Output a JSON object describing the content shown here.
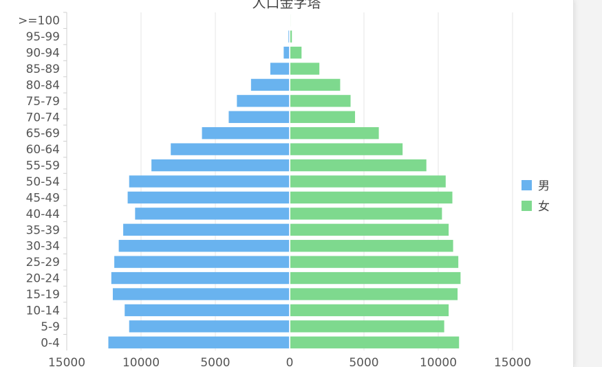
{
  "chart_data": {
    "type": "bar",
    "orientation": "horizontal",
    "title": "人口金字塔",
    "categories": [
      ">=100",
      "95-99",
      "90-94",
      "85-89",
      "80-84",
      "75-79",
      "70-74",
      "65-69",
      "60-64",
      "55-59",
      "50-54",
      "45-49",
      "40-44",
      "35-39",
      "30-34",
      "25-29",
      "20-24",
      "15-19",
      "10-14",
      "5-9",
      "0-4"
    ],
    "series": [
      {
        "name": "男",
        "color": "#69b3ef",
        "values": [
          20,
          80,
          400,
          1300,
          2600,
          3550,
          4100,
          5900,
          8000,
          9300,
          10800,
          10900,
          10400,
          11200,
          11500,
          11800,
          12000,
          11900,
          11100,
          10800,
          12200
        ]
      },
      {
        "name": "女",
        "color": "#7ed98e",
        "values": [
          50,
          150,
          800,
          2000,
          3400,
          4100,
          4400,
          6000,
          7600,
          9200,
          10500,
          10950,
          10250,
          10700,
          11000,
          11350,
          11500,
          11300,
          10700,
          10400,
          11400
        ]
      }
    ],
    "xlim": [
      -15000,
      15000
    ],
    "xticks": [
      -15000,
      -10000,
      -5000,
      0,
      5000,
      10000,
      15000
    ],
    "xtick_labels": [
      "15000",
      "10000",
      "5000",
      "0",
      "5000",
      "10000",
      "15000"
    ],
    "grid": "vertical",
    "legend": "right"
  }
}
